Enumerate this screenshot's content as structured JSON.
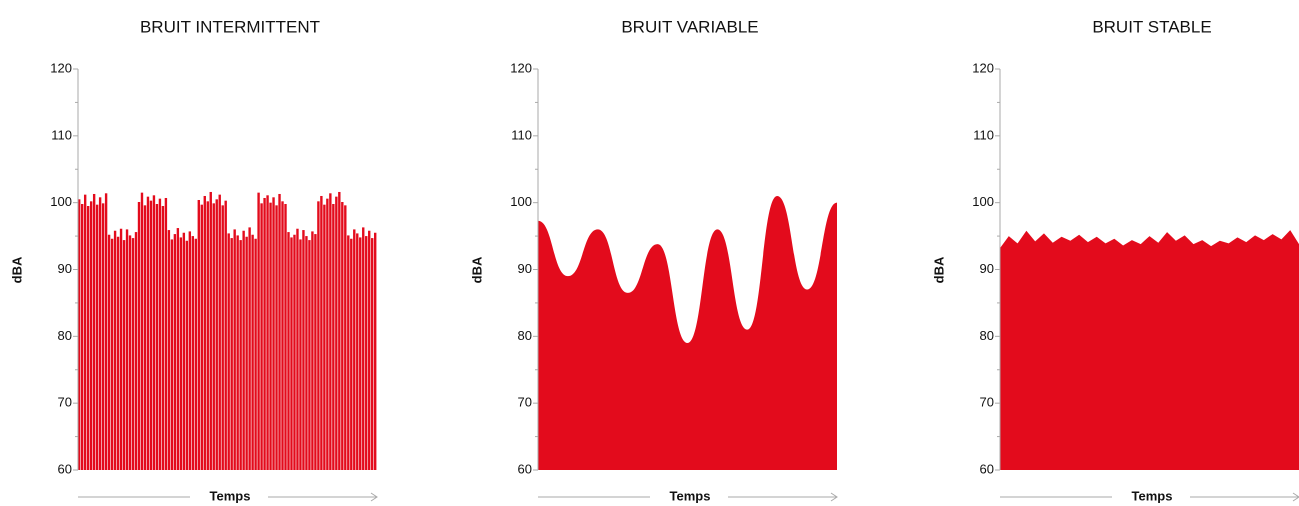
{
  "chart_data": [
    {
      "type": "bar",
      "title": "BRUIT INTERMITTENT",
      "ylabel": "dBA",
      "xlabel": "Temps",
      "color": "#e30b1c",
      "ylim": [
        60,
        120
      ],
      "yticks": [
        60,
        70,
        80,
        90,
        100,
        110,
        120
      ],
      "minor_yticks": [
        65,
        75,
        85,
        95,
        105,
        115
      ],
      "values": [
        100.5,
        99.8,
        101.2,
        99.5,
        100.2,
        101.3,
        99.7,
        100.8,
        99.9,
        101.4,
        95.2,
        94.6,
        95.8,
        94.9,
        96.1,
        94.4,
        96.0,
        95.1,
        94.7,
        95.6,
        100.1,
        101.5,
        99.6,
        100.9,
        100.3,
        101.1,
        99.8,
        100.6,
        99.5,
        100.7,
        95.9,
        94.5,
        95.3,
        96.2,
        94.8,
        95.5,
        94.3,
        95.7,
        95.0,
        94.6,
        100.4,
        99.7,
        101.0,
        100.2,
        101.6,
        99.9,
        100.5,
        101.2,
        99.6,
        100.3,
        95.4,
        94.7,
        96.0,
        95.1,
        94.4,
        95.8,
        94.9,
        96.3,
        95.2,
        94.6,
        101.5,
        99.9,
        100.7,
        101.1,
        100.0,
        100.8,
        99.6,
        101.3,
        100.2,
        99.8,
        95.6,
        94.8,
        95.2,
        96.1,
        94.5,
        95.9,
        95.0,
        94.4,
        95.7,
        95.3,
        100.2,
        101.0,
        99.7,
        100.6,
        101.4,
        99.8,
        100.9,
        101.6,
        100.1,
        99.6,
        95.1,
        94.6,
        96.0,
        95.4,
        94.8,
        96.3,
        95.0,
        95.8,
        94.7,
        95.5
      ]
    },
    {
      "type": "area",
      "title": "BRUIT VARIABLE",
      "ylabel": "dBA",
      "xlabel": "Temps",
      "color": "#e30b1c",
      "ylim": [
        60,
        120
      ],
      "yticks": [
        60,
        70,
        80,
        90,
        100,
        110,
        120
      ],
      "minor_yticks": [
        65,
        75,
        85,
        95,
        105,
        115
      ],
      "values": [
        97.3,
        89.0,
        96.0,
        86.5,
        93.8,
        79.0,
        96.0,
        81.0,
        101.0,
        87.0,
        100.0
      ]
    },
    {
      "type": "line-area",
      "title": "BRUIT STABLE",
      "ylabel": "dBA",
      "xlabel": "Temps",
      "color": "#e30b1c",
      "ylim": [
        60,
        120
      ],
      "yticks": [
        60,
        70,
        80,
        90,
        100,
        110,
        120
      ],
      "minor_yticks": [
        65,
        75,
        85,
        95,
        105,
        115
      ],
      "values": [
        93.2,
        95.0,
        93.9,
        95.8,
        94.2,
        95.4,
        94.0,
        94.9,
        94.3,
        95.2,
        94.1,
        94.9,
        93.9,
        94.6,
        93.6,
        94.4,
        93.8,
        95.0,
        94.0,
        95.6,
        94.3,
        95.1,
        93.8,
        94.4,
        93.5,
        94.3,
        93.9,
        94.8,
        94.1,
        95.1,
        94.4,
        95.3,
        94.5,
        95.9,
        93.8
      ]
    }
  ]
}
